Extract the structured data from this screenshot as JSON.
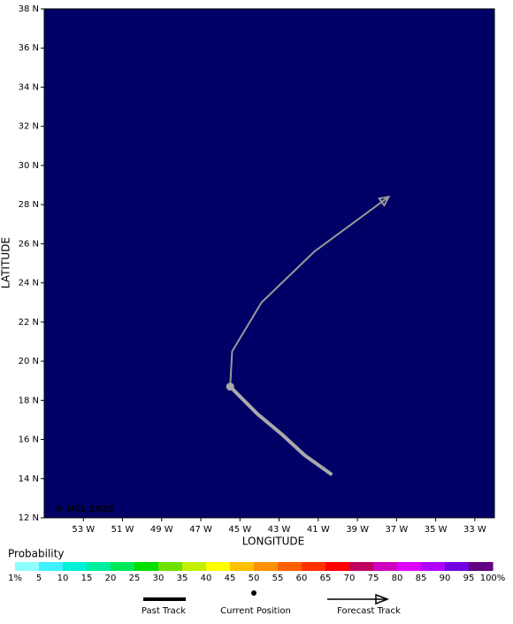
{
  "chart_data": {
    "type": "track",
    "x_label": "LONGITUDE",
    "y_label": "LATITUDE",
    "xlim": [
      -55,
      -32
    ],
    "ylim": [
      12,
      38
    ],
    "xticks": [
      {
        "value": -53,
        "label": "53 W"
      },
      {
        "value": -51,
        "label": "51 W"
      },
      {
        "value": -49,
        "label": "49 W"
      },
      {
        "value": -47,
        "label": "47 W"
      },
      {
        "value": -45,
        "label": "45 W"
      },
      {
        "value": -43,
        "label": "43 W"
      },
      {
        "value": -41,
        "label": "41 W"
      },
      {
        "value": -39,
        "label": "39 W"
      },
      {
        "value": -37,
        "label": "37 W"
      },
      {
        "value": -35,
        "label": "35 W"
      },
      {
        "value": -33,
        "label": "33 W"
      }
    ],
    "yticks": [
      {
        "value": 12,
        "label": "12 N"
      },
      {
        "value": 14,
        "label": "14 N"
      },
      {
        "value": 16,
        "label": "16 N"
      },
      {
        "value": 18,
        "label": "18 N"
      },
      {
        "value": 20,
        "label": "20 N"
      },
      {
        "value": 22,
        "label": "22 N"
      },
      {
        "value": 24,
        "label": "24 N"
      },
      {
        "value": 26,
        "label": "26 N"
      },
      {
        "value": 28,
        "label": "28 N"
      },
      {
        "value": 30,
        "label": "30 N"
      },
      {
        "value": 32,
        "label": "32 N"
      },
      {
        "value": 34,
        "label": "34 N"
      },
      {
        "value": 36,
        "label": "36 N"
      },
      {
        "value": 38,
        "label": "38 N"
      }
    ],
    "background": "#000066",
    "copyright": "© UCL 2025",
    "series": [
      {
        "name": "Past Track",
        "color": "#aaaaaa",
        "x": [
          -40.3,
          -41.7,
          -42.9,
          -44.1,
          -45.1,
          -45.5
        ],
        "y": [
          14.2,
          15.2,
          16.3,
          17.3,
          18.3,
          18.7
        ]
      },
      {
        "name": "Current Position",
        "color": "#aaaaaa",
        "x": [
          -45.5
        ],
        "y": [
          18.7
        ]
      },
      {
        "name": "Forecast Track",
        "color": "#999999",
        "x": [
          -45.5,
          -45.4,
          -43.9,
          -41.2,
          -37.4
        ],
        "y": [
          18.7,
          20.5,
          23.0,
          25.6,
          28.4
        ]
      }
    ],
    "probability": {
      "title": "Probability",
      "ticks": [
        {
          "value": 1,
          "label": "1%"
        },
        5,
        10,
        15,
        20,
        25,
        30,
        35,
        40,
        45,
        50,
        55,
        60,
        65,
        70,
        75,
        80,
        85,
        90,
        95,
        {
          "value": 100,
          "label": "100%"
        }
      ],
      "colors": [
        "#90ffff",
        "#40f0ff",
        "#00f0d8",
        "#00f0a0",
        "#00e858",
        "#00e000",
        "#70e000",
        "#c0f000",
        "#ffff00",
        "#ffc000",
        "#ff9000",
        "#ff6000",
        "#ff3000",
        "#ff0000",
        "#c00060",
        "#d000c0",
        "#e000ff",
        "#b000ff",
        "#7000e0",
        "#600080"
      ]
    }
  }
}
